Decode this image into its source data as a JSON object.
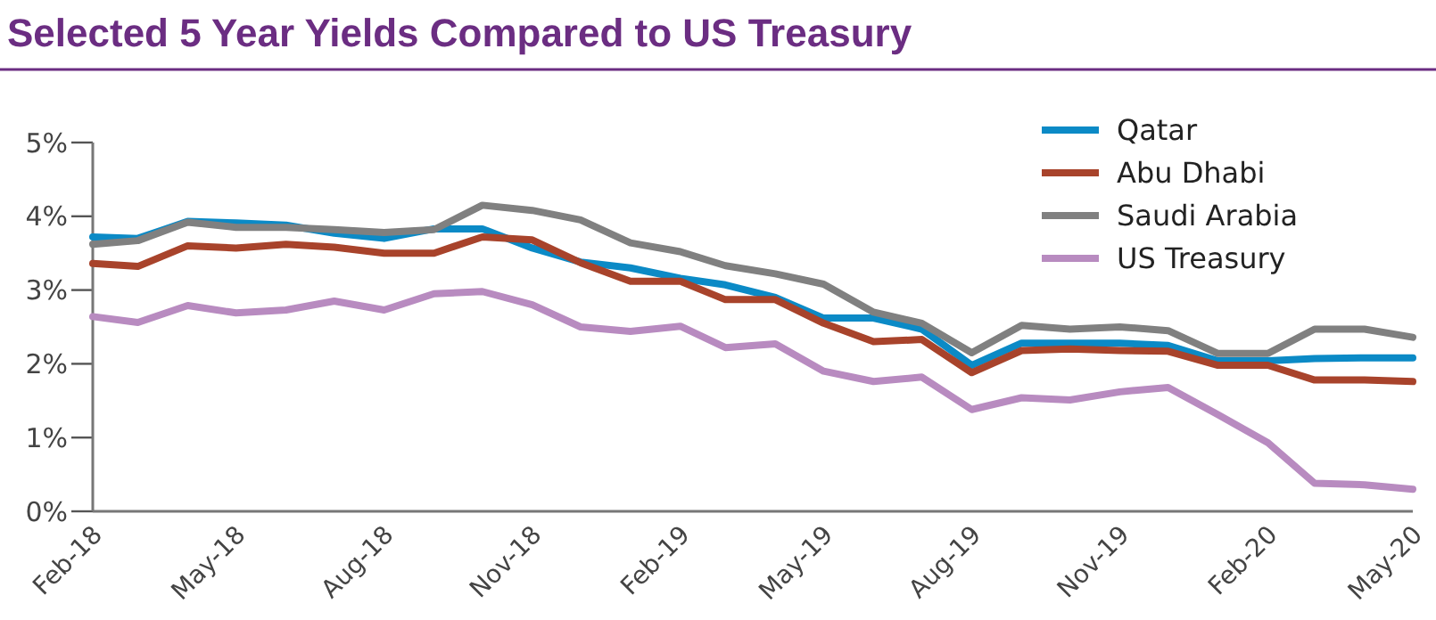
{
  "chart_data": {
    "type": "line",
    "title": "Selected 5 Year Yields Compared to US Treasury",
    "x": [
      "2018-02",
      "2018-03",
      "2018-04",
      "2018-05",
      "2018-06",
      "2018-07",
      "2018-08",
      "2018-09",
      "2018-10",
      "2018-11",
      "2018-12",
      "2019-01",
      "2019-02",
      "2019-03",
      "2019-04",
      "2019-05",
      "2019-06",
      "2019-07",
      "2019-08",
      "2019-09",
      "2019-10",
      "2019-11",
      "2019-12",
      "2020-01",
      "2020-02",
      "2020-03",
      "2020-04",
      "2020-05"
    ],
    "series": [
      {
        "name": "Qatar",
        "color": "#0b8ac6",
        "values": [
          3.72,
          3.7,
          3.93,
          3.91,
          3.88,
          3.77,
          3.7,
          3.83,
          3.83,
          3.57,
          3.38,
          3.3,
          3.16,
          3.07,
          2.9,
          2.62,
          2.62,
          2.47,
          1.98,
          2.28,
          2.28,
          2.28,
          2.25,
          2.04,
          2.04,
          2.07,
          2.08,
          2.08
        ]
      },
      {
        "name": "Abu Dhabi",
        "color": "#a8432b",
        "values": [
          3.36,
          3.32,
          3.6,
          3.57,
          3.62,
          3.58,
          3.5,
          3.5,
          3.72,
          3.68,
          3.37,
          3.12,
          3.12,
          2.87,
          2.87,
          2.55,
          2.3,
          2.33,
          1.88,
          2.18,
          2.2,
          2.18,
          2.17,
          1.98,
          1.98,
          1.78,
          1.78,
          1.76
        ]
      },
      {
        "name": "Saudi Arabia",
        "color": "#808080",
        "values": [
          3.62,
          3.67,
          3.92,
          3.85,
          3.85,
          3.82,
          3.78,
          3.82,
          4.15,
          4.08,
          3.95,
          3.64,
          3.52,
          3.33,
          3.22,
          3.08,
          2.7,
          2.55,
          2.15,
          2.52,
          2.47,
          2.5,
          2.45,
          2.14,
          2.14,
          2.47,
          2.47,
          2.36
        ]
      },
      {
        "name": "US Treasury",
        "color": "#b88bc0",
        "values": [
          2.64,
          2.56,
          2.79,
          2.69,
          2.73,
          2.85,
          2.73,
          2.95,
          2.98,
          2.8,
          2.5,
          2.44,
          2.51,
          2.22,
          2.27,
          1.9,
          1.76,
          1.82,
          1.38,
          1.54,
          1.51,
          1.62,
          1.68,
          1.31,
          0.93,
          0.38,
          0.36,
          0.3
        ]
      }
    ],
    "xlim": [
      "2018-02",
      "2020-05"
    ],
    "xticks": [
      {
        "value": "2018-02",
        "label": "Feb-18"
      },
      {
        "value": "2018-05",
        "label": "May-18"
      },
      {
        "value": "2018-08",
        "label": "Aug-18"
      },
      {
        "value": "2018-11",
        "label": "Nov-18"
      },
      {
        "value": "2019-02",
        "label": "Feb-19"
      },
      {
        "value": "2019-05",
        "label": "May-19"
      },
      {
        "value": "2019-08",
        "label": "Aug-19"
      },
      {
        "value": "2019-11",
        "label": "Nov-19"
      },
      {
        "value": "2020-02",
        "label": "Feb-20"
      },
      {
        "value": "2020-05",
        "label": "May-20"
      }
    ],
    "ylim": [
      0,
      5
    ],
    "yticks": [
      {
        "value": 0,
        "label": "0%"
      },
      {
        "value": 1,
        "label": "1%"
      },
      {
        "value": 2,
        "label": "2%"
      },
      {
        "value": 3,
        "label": "3%"
      },
      {
        "value": 4,
        "label": "4%"
      },
      {
        "value": 5,
        "label": "5%"
      }
    ],
    "legend": "top right",
    "grid": false,
    "marker": "none",
    "line_style": "solid"
  }
}
